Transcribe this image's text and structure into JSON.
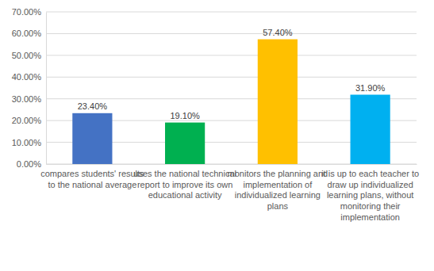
{
  "chart_data": {
    "type": "bar",
    "categories": [
      "compares students' results to the national average",
      "uses the national technical report to improve its own educational activity",
      "monitors the planning and implementation of individualized learning plans",
      "it is up to each teacher to draw up individualized learning plans, without monitoring their implementation"
    ],
    "values": [
      23.4,
      19.1,
      57.4,
      31.9
    ],
    "value_labels": [
      "23.40%",
      "19.10%",
      "57.40%",
      "31.90%"
    ],
    "colors": [
      "#4472c4",
      "#00b050",
      "#ffc000",
      "#00b0f0"
    ],
    "ylim": [
      0,
      70
    ],
    "yticks": [
      {
        "value": 0,
        "label": "0.00%"
      },
      {
        "value": 10,
        "label": "10.00%"
      },
      {
        "value": 20,
        "label": "20.00%"
      },
      {
        "value": 30,
        "label": "30.00%"
      },
      {
        "value": 40,
        "label": "40.00%"
      },
      {
        "value": 50,
        "label": "50.00%"
      },
      {
        "value": 60,
        "label": "60.00%"
      },
      {
        "value": 70,
        "label": "70.00%"
      }
    ],
    "grid": true,
    "data_labels": true
  }
}
